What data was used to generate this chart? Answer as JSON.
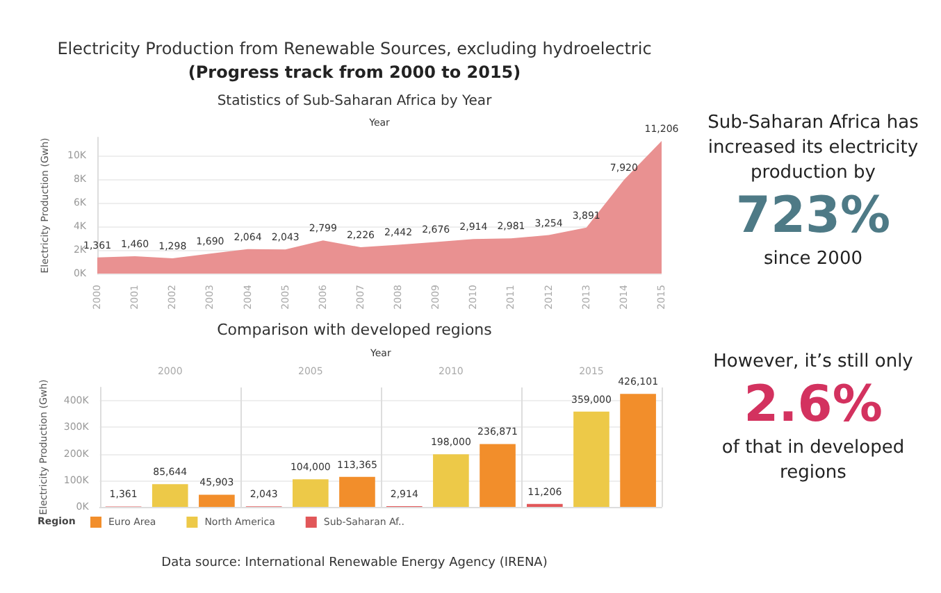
{
  "chart_data": [
    {
      "type": "area",
      "title": "Electricity Production from Renewable Sources, excluding hydroelectric",
      "subtitle": "(Progress track from 2000 to 2015)",
      "annotations": [
        "Statistics of Sub-Saharan Africa by Year"
      ],
      "xlabel": "Year",
      "ylabel": "Electricity Production (Gwh)",
      "categories": [
        "2000",
        "2001",
        "2002",
        "2003",
        "2004",
        "2005",
        "2006",
        "2007",
        "2008",
        "2009",
        "2010",
        "2011",
        "2012",
        "2013",
        "2014",
        "2015"
      ],
      "series": [
        {
          "color": "#e99191",
          "values": [
            1361,
            1460,
            1298,
            1690,
            2064,
            2043,
            2799,
            2226,
            2442,
            2676,
            2914,
            2981,
            3254,
            3891,
            7920,
            11206
          ],
          "value_labels": [
            "1,361",
            "1,460",
            "1,298",
            "1,690",
            "2,064",
            "2,043",
            "2,799",
            "2,226",
            "2,442",
            "2,676",
            "2,914",
            "2,981",
            "3,254",
            "3,891",
            "7,920",
            "11,206"
          ]
        }
      ],
      "ylim": [
        0,
        11500
      ],
      "yticks": [
        {
          "value": 0,
          "label": "0K"
        },
        {
          "value": 2000,
          "label": "2K"
        },
        {
          "value": 4000,
          "label": "4K"
        },
        {
          "value": 6000,
          "label": "6K"
        },
        {
          "value": 8000,
          "label": "8K"
        },
        {
          "value": 10000,
          "label": "10K"
        }
      ],
      "grid": "y",
      "legend": false
    },
    {
      "type": "bar",
      "title": "Comparison with developed regions",
      "xlabel": "Year",
      "ylabel": "Electricity Production (Gwh)",
      "legend_title": "Region",
      "annotations": [
        "Data source: International Renewable Energy Agency (IRENA)"
      ],
      "categories": [
        "2000",
        "2005",
        "2010",
        "2015"
      ],
      "series": [
        {
          "name": "Sub-Saharan Af..",
          "color": "#e15759",
          "values": [
            1361,
            2043,
            2914,
            11206
          ],
          "value_labels": [
            "1,361",
            "2,043",
            "2,914",
            "11,206"
          ]
        },
        {
          "name": "North America",
          "color": "#edc948",
          "values": [
            85644,
            104000,
            198000,
            359000
          ],
          "value_labels": [
            "85,644",
            "104,000",
            "198,000",
            "359,000"
          ]
        },
        {
          "name": "Euro Area",
          "color": "#f28e2b",
          "values": [
            45903,
            113365,
            236871,
            426101
          ],
          "value_labels": [
            "45,903",
            "113,365",
            "236,871",
            "426,101"
          ]
        }
      ],
      "ylim": [
        0,
        450000
      ],
      "yticks": [
        {
          "value": 0,
          "label": "0K"
        },
        {
          "value": 100000,
          "label": "100K"
        },
        {
          "value": 200000,
          "label": "200K"
        },
        {
          "value": 300000,
          "label": "300K"
        },
        {
          "value": 400000,
          "label": "400K"
        }
      ],
      "grid": "y",
      "legend": "bottom left"
    },
    {
      "type": "other",
      "annotations": [
        "Sub-Saharan Africa has increased its electricity production by",
        "723%",
        "since 2000",
        "However, it’s still only",
        "2.6%",
        "of that in developed regions"
      ]
    }
  ]
}
